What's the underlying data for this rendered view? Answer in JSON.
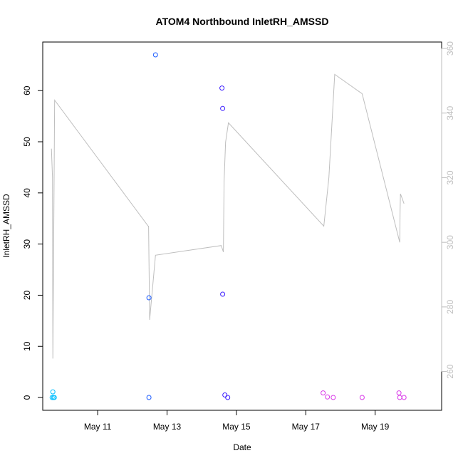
{
  "chart_data": {
    "type": "scatter",
    "title": "ATOM4 Northbound InletRH_AMSSD",
    "xlabel": "Date",
    "ylabel": "InletRH_AMSSD",
    "xlim": [
      "2016-05-09T10:00",
      "2016-05-20T22:00"
    ],
    "ylim": [
      -2.5,
      69.5
    ],
    "y2lim": [
      248,
      362
    ],
    "x_ticks": [
      {
        "value": "2016-05-11",
        "label": "May 11"
      },
      {
        "value": "2016-05-13",
        "label": "May 13"
      },
      {
        "value": "2016-05-15",
        "label": "May 15"
      },
      {
        "value": "2016-05-17",
        "label": "May 17"
      },
      {
        "value": "2016-05-19",
        "label": "May 19"
      }
    ],
    "y_ticks": [
      0,
      10,
      20,
      30,
      40,
      50,
      60
    ],
    "y2_ticks": [
      260,
      280,
      300,
      320,
      340,
      360
    ],
    "colors": {
      "line": "#bebebe",
      "axis": "#000000",
      "right_axis": "#bebebe"
    },
    "series": [
      {
        "type": "points",
        "points": [
          {
            "x": "2016-05-09T16:30",
            "y": 0.0,
            "color": "#00bfff"
          },
          {
            "x": "2016-05-09T17:00",
            "y": 1.1,
            "color": "#00bfff"
          },
          {
            "x": "2016-05-09T17:30",
            "y": 0.0,
            "color": "#00bfff"
          },
          {
            "x": "2016-05-09T18:00",
            "y": 0.0,
            "color": "#00bfff"
          },
          {
            "x": "2016-05-12T11:30",
            "y": 19.5,
            "color": "#1c5cff"
          },
          {
            "x": "2016-05-12T11:30",
            "y": 0.0,
            "color": "#1c5cff"
          },
          {
            "x": "2016-05-12T16:00",
            "y": 67.0,
            "color": "#1c5cff"
          },
          {
            "x": "2016-05-14T14:00",
            "y": 60.5,
            "color": "#3a1cff"
          },
          {
            "x": "2016-05-14T14:30",
            "y": 56.5,
            "color": "#3a1cff"
          },
          {
            "x": "2016-05-14T14:30",
            "y": 20.2,
            "color": "#3a1cff"
          },
          {
            "x": "2016-05-14T16:00",
            "y": 0.5,
            "color": "#3a1cff"
          },
          {
            "x": "2016-05-14T18:00",
            "y": 0.0,
            "color": "#3a1cff"
          },
          {
            "x": "2016-05-17T12:00",
            "y": 0.9,
            "color": "#d838e8"
          },
          {
            "x": "2016-05-17T15:00",
            "y": 0.1,
            "color": "#d838e8"
          },
          {
            "x": "2016-05-17T19:00",
            "y": 0.0,
            "color": "#d838e8"
          },
          {
            "x": "2016-05-18T15:00",
            "y": 0.0,
            "color": "#d838e8"
          },
          {
            "x": "2016-05-19T16:30",
            "y": 0.9,
            "color": "#d838e8"
          },
          {
            "x": "2016-05-19T17:00",
            "y": 0.0,
            "color": "#d838e8"
          },
          {
            "x": "2016-05-19T20:00",
            "y": 0.0,
            "color": "#d838e8"
          }
        ]
      },
      {
        "type": "line",
        "axis": "right",
        "points": [
          {
            "x": "2016-05-09T16:00",
            "y": 329
          },
          {
            "x": "2016-05-09T16:45",
            "y": 320
          },
          {
            "x": "2016-05-09T17:00",
            "y": 264
          },
          {
            "x": "2016-05-09T17:30",
            "y": 295
          },
          {
            "x": "2016-05-09T18:15",
            "y": 344
          },
          {
            "x": "2016-05-12T11:00",
            "y": 305
          },
          {
            "x": "2016-05-12T11:15",
            "y": 305
          },
          {
            "x": "2016-05-12T12:00",
            "y": 276
          },
          {
            "x": "2016-05-12T16:00",
            "y": 296
          },
          {
            "x": "2016-05-14T13:30",
            "y": 299
          },
          {
            "x": "2016-05-14T15:00",
            "y": 297
          },
          {
            "x": "2016-05-14T15:30",
            "y": 319
          },
          {
            "x": "2016-05-14T16:30",
            "y": 331
          },
          {
            "x": "2016-05-14T18:30",
            "y": 337
          },
          {
            "x": "2016-05-17T12:30",
            "y": 305
          },
          {
            "x": "2016-05-17T16:00",
            "y": 320
          },
          {
            "x": "2016-05-17T20:00",
            "y": 352
          },
          {
            "x": "2016-05-18T15:00",
            "y": 346
          },
          {
            "x": "2016-05-19T17:00",
            "y": 300
          },
          {
            "x": "2016-05-19T17:15",
            "y": 310
          },
          {
            "x": "2016-05-19T17:30",
            "y": 315
          },
          {
            "x": "2016-05-19T20:00",
            "y": 312
          }
        ]
      }
    ]
  }
}
